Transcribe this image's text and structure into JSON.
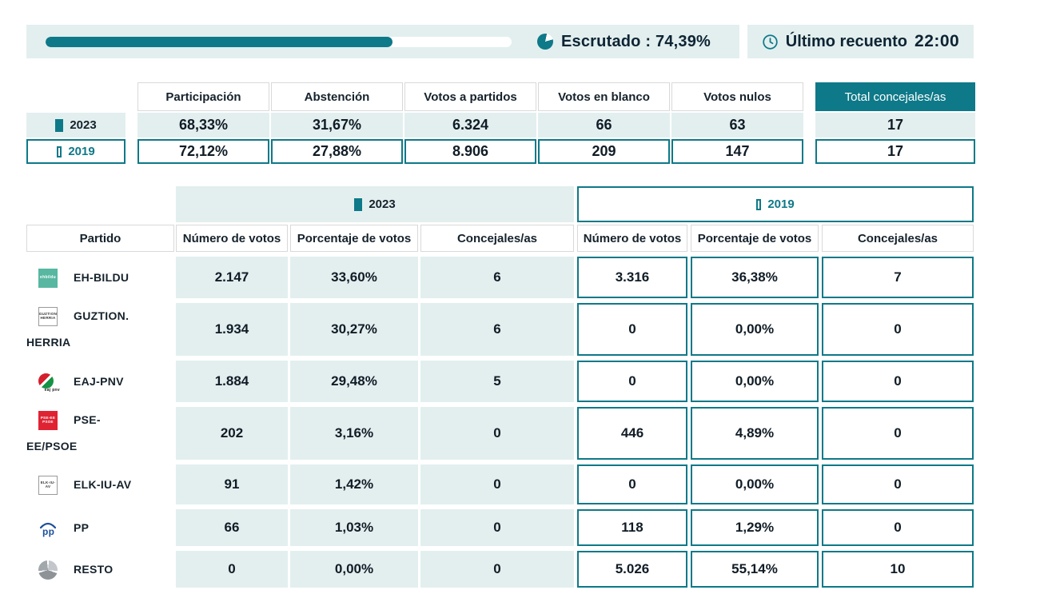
{
  "colors": {
    "accent_teal": "#0e7988",
    "light_teal_bg": "#e3efef",
    "dark_text": "#0d2433"
  },
  "topbar": {
    "progress_pct": 74.39,
    "escrutado_text": "Escrutado : 74,39%",
    "recuento_label": "Último recuento",
    "recuento_value": "22:00"
  },
  "summary": {
    "columns": [
      "Participación",
      "Abstención",
      "Votos a partidos",
      "Votos en blanco",
      "Votos nulos"
    ],
    "total_header": "Total concejales/as",
    "rows": [
      {
        "year": "2023",
        "values": [
          "68,33%",
          "31,67%",
          "6.324",
          "66",
          "63"
        ],
        "total": "17"
      },
      {
        "year": "2019",
        "values": [
          "72,12%",
          "27,88%",
          "8.906",
          "209",
          "147"
        ],
        "total": "17"
      }
    ]
  },
  "results": {
    "group_2023": "2023",
    "group_2019": "2019",
    "partido_header": "Partido",
    "columns": [
      "Número de votos",
      "Porcentaje de votos",
      "Concejales/as"
    ],
    "parties": [
      {
        "name": "EH-BILDU",
        "logo_text": "ehbildu",
        "v2023": [
          "2.147",
          "33,60%",
          "6"
        ],
        "v2019": [
          "3.316",
          "36,38%",
          "7"
        ]
      },
      {
        "name": "GUZTION. HERRIA",
        "logo_text": "GUZTION HERRIA",
        "v2023": [
          "1.934",
          "30,27%",
          "6"
        ],
        "v2019": [
          "0",
          "0,00%",
          "0"
        ]
      },
      {
        "name": "EAJ-PNV",
        "logo_text": "eaj pnv",
        "v2023": [
          "1.884",
          "29,48%",
          "5"
        ],
        "v2019": [
          "0",
          "0,00%",
          "0"
        ]
      },
      {
        "name": "PSE-EE/PSOE",
        "logo_text": "PSE-EE PSOE",
        "v2023": [
          "202",
          "3,16%",
          "0"
        ],
        "v2019": [
          "446",
          "4,89%",
          "0"
        ]
      },
      {
        "name": "ELK-IU-AV",
        "logo_text": "ELK-IU-AV",
        "v2023": [
          "91",
          "1,42%",
          "0"
        ],
        "v2019": [
          "0",
          "0,00%",
          "0"
        ]
      },
      {
        "name": "PP",
        "logo_text": "pp",
        "v2023": [
          "66",
          "1,03%",
          "0"
        ],
        "v2019": [
          "118",
          "1,29%",
          "0"
        ]
      },
      {
        "name": "RESTO",
        "v2023": [
          "0",
          "0,00%",
          "0"
        ],
        "v2019": [
          "5.026",
          "55,14%",
          "10"
        ]
      }
    ]
  }
}
